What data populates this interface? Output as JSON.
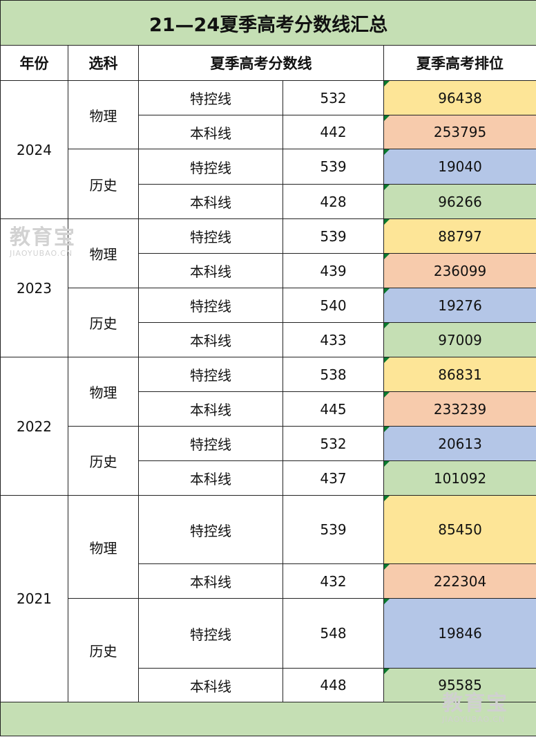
{
  "title": "21—24夏季高考分数线汇总",
  "headers": {
    "year": "年份",
    "subject": "选科",
    "score": "夏季高考分数线",
    "rank": "夏季高考排位"
  },
  "watermark": {
    "name": "教育宝",
    "domain": "JIAOYUBAO.CN"
  },
  "colors": {
    "title_bg": "#c5dfb4",
    "rank_yellow": "#fde597",
    "rank_peach": "#f7cbac",
    "rank_blue": "#b4c6e7",
    "rank_green": "#c5dfb4"
  },
  "years": [
    {
      "year": "2024",
      "groups": [
        {
          "subject": "物理",
          "rows": [
            {
              "line": "特控线",
              "score": "532",
              "rank": "96438"
            },
            {
              "line": "本科线",
              "score": "442",
              "rank": "253795"
            }
          ]
        },
        {
          "subject": "历史",
          "rows": [
            {
              "line": "特控线",
              "score": "539",
              "rank": "19040"
            },
            {
              "line": "本科线",
              "score": "428",
              "rank": "96266"
            }
          ]
        }
      ]
    },
    {
      "year": "2023",
      "groups": [
        {
          "subject": "物理",
          "rows": [
            {
              "line": "特控线",
              "score": "539",
              "rank": "88797"
            },
            {
              "line": "本科线",
              "score": "439",
              "rank": "236099"
            }
          ]
        },
        {
          "subject": "历史",
          "rows": [
            {
              "line": "特控线",
              "score": "540",
              "rank": "19276"
            },
            {
              "line": "本科线",
              "score": "433",
              "rank": "97009"
            }
          ]
        }
      ]
    },
    {
      "year": "2022",
      "groups": [
        {
          "subject": "物理",
          "rows": [
            {
              "line": "特控线",
              "score": "538",
              "rank": "86831"
            },
            {
              "line": "本科线",
              "score": "445",
              "rank": "233239"
            }
          ]
        },
        {
          "subject": "历史",
          "rows": [
            {
              "line": "特控线",
              "score": "532",
              "rank": "20613"
            },
            {
              "line": "本科线",
              "score": "437",
              "rank": "101092"
            }
          ]
        }
      ]
    },
    {
      "year": "2021",
      "groups": [
        {
          "subject": "物理",
          "rows": [
            {
              "line": "特控线",
              "score": "539",
              "rank": "85450"
            },
            {
              "line": "本科线",
              "score": "432",
              "rank": "222304"
            }
          ]
        },
        {
          "subject": "历史",
          "rows": [
            {
              "line": "特控线",
              "score": "548",
              "rank": "19846"
            },
            {
              "line": "本科线",
              "score": "448",
              "rank": "95585"
            }
          ]
        }
      ]
    }
  ]
}
